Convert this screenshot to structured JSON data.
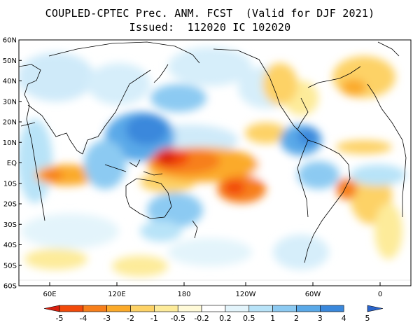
{
  "title": {
    "line1": "COUPLED-CPTEC Prec. ANM. FCST  (Valid for DJF 2021)",
    "line2": "Issued:  112020 IC 102020"
  },
  "lat_labels": [
    "60N",
    "50N",
    "40N",
    "30N",
    "20N",
    "10N",
    "EQ",
    "10S",
    "20S",
    "30S",
    "40S",
    "50S",
    "60S"
  ],
  "lon_labels": [
    "60E",
    "120E",
    "180",
    "120W",
    "60W",
    "0"
  ],
  "colorbar": {
    "labels": [
      "-5",
      "-4",
      "-3",
      "-2",
      "-1",
      "-0.5",
      "-0.2",
      "0.2",
      "0.5",
      "1",
      "2",
      "3",
      "4",
      "5"
    ],
    "colors": [
      "#d9200f",
      "#f24a0a",
      "#f77f1b",
      "#fbaa2a",
      "#fdd266",
      "#fdeb9a",
      "#fffad8",
      "#ffffff",
      "#e3f4fb",
      "#b8e3f8",
      "#8ccaf2",
      "#5aa9e8",
      "#3a88dc",
      "#2a64cb"
    ]
  },
  "colors": {
    "ocean_neutral": "#ffffff",
    "coast": "#000000"
  }
}
